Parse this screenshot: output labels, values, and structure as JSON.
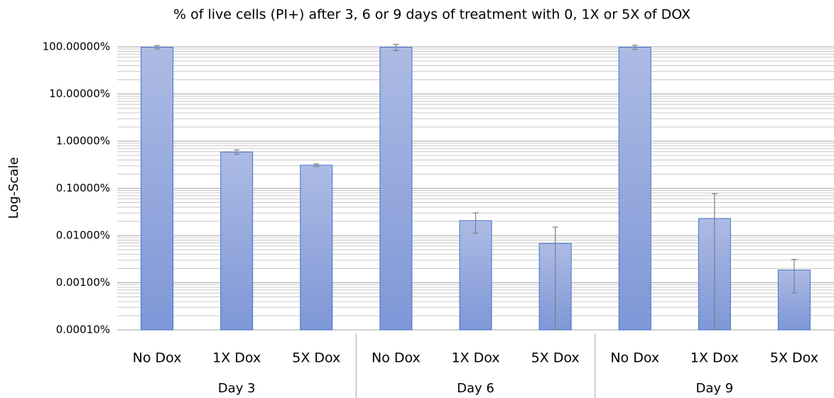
{
  "chart_data": {
    "type": "bar",
    "title": "% of live cells (PI+) after 3, 6 or 9 days of treatment with 0, 1X or 5X of DOX",
    "y_label": "Log-Scale",
    "groups": [
      {
        "name": "Day 3",
        "categories": [
          "No Dox",
          "1X Dox",
          "5X Dox"
        ]
      },
      {
        "name": "Day 6",
        "categories": [
          "No Dox",
          "1X Dox",
          "5X Dox"
        ]
      },
      {
        "name": "Day 9",
        "categories": [
          "No Dox",
          "1X Dox",
          "5X Dox"
        ]
      }
    ],
    "series": [
      {
        "color": "#4472c4",
        "values": [
          98,
          0.59,
          0.31,
          98,
          0.0207,
          0.0068,
          98,
          0.023,
          0.00186
        ],
        "errors": [
          8,
          0.06,
          0.02,
          15,
          0.0095,
          0.0083,
          10,
          0.054,
          0.00125
        ]
      }
    ],
    "log_scale": true,
    "grid": true,
    "minor_grid": true,
    "ylim": [
      0.0001,
      100
    ],
    "yticks": [
      {
        "value": 0.0001,
        "label": "0.00010%"
      },
      {
        "value": 0.001,
        "label": "0.00100%"
      },
      {
        "value": 0.01,
        "label": "0.01000%"
      },
      {
        "value": 0.1,
        "label": "0.10000%"
      },
      {
        "value": 1,
        "label": "1.00000%"
      },
      {
        "value": 10,
        "label": "10.00000%"
      },
      {
        "value": 100,
        "label": "100.00000%"
      }
    ]
  }
}
